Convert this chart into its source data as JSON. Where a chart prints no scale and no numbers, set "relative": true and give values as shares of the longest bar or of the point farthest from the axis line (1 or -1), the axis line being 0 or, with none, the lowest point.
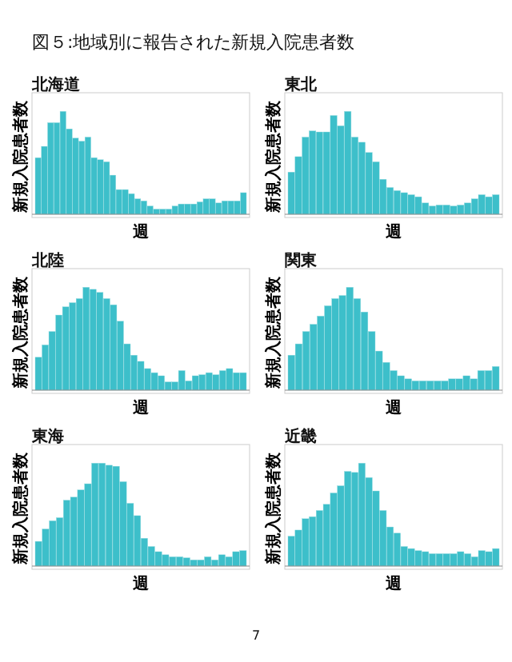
{
  "chart_data": [
    {
      "type": "other",
      "title": "図５:地域別に報告された新規入院患者数",
      "annotations": [
        "7"
      ]
    },
    {
      "type": "bar",
      "title": "北海道",
      "xlabel": "週",
      "ylabel": "新規入院患者数",
      "relative": true,
      "color": "#3dbfca",
      "categories": [
        null,
        null,
        null,
        null,
        null,
        null,
        null,
        null,
        null,
        null,
        null,
        null,
        null,
        null,
        null,
        null,
        null,
        null,
        null,
        null,
        null,
        null,
        null,
        null,
        null,
        null,
        null,
        null,
        null,
        null,
        null,
        null,
        null,
        null
      ],
      "values": [
        0.55,
        0.66,
        0.89,
        0.89,
        1,
        0.83,
        0.74,
        0.71,
        0.75,
        0.55,
        0.53,
        0.51,
        0.38,
        0.24,
        0.24,
        0.2,
        0.15,
        0.13,
        0.08,
        0.05,
        0.05,
        0.05,
        0.08,
        0.1,
        0.1,
        0.1,
        0.12,
        0.15,
        0.15,
        0.11,
        0.13,
        0.13,
        0.13,
        0.21
      ]
    },
    {
      "type": "bar",
      "title": "東北",
      "xlabel": "週",
      "ylabel": "新規入院患者数",
      "relative": true,
      "color": "#3dbfca",
      "categories": [
        null,
        null,
        null,
        null,
        null,
        null,
        null,
        null,
        null,
        null,
        null,
        null,
        null,
        null,
        null,
        null,
        null,
        null,
        null,
        null,
        null,
        null,
        null,
        null,
        null,
        null,
        null,
        null,
        null,
        null
      ],
      "values": [
        0.41,
        0.56,
        0.75,
        0.81,
        0.8,
        0.8,
        0.96,
        0.86,
        1,
        0.75,
        0.7,
        0.6,
        0.51,
        0.34,
        0.26,
        0.23,
        0.21,
        0.19,
        0.17,
        0.11,
        0.08,
        0.09,
        0.09,
        0.08,
        0.09,
        0.11,
        0.15,
        0.19,
        0.17,
        0.19
      ]
    },
    {
      "type": "bar",
      "title": "北陸",
      "xlabel": "週",
      "ylabel": "新規入院患者数",
      "relative": true,
      "color": "#3dbfca",
      "categories": [
        null,
        null,
        null,
        null,
        null,
        null,
        null,
        null,
        null,
        null,
        null,
        null,
        null,
        null,
        null,
        null,
        null,
        null,
        null,
        null,
        null,
        null,
        null,
        null,
        null,
        null,
        null,
        null,
        null,
        null,
        null
      ],
      "values": [
        0.32,
        0.44,
        0.57,
        0.73,
        0.81,
        0.85,
        0.89,
        1,
        0.98,
        0.95,
        0.89,
        0.83,
        0.67,
        0.45,
        0.34,
        0.28,
        0.21,
        0.17,
        0.14,
        0.08,
        0.08,
        0.19,
        0.09,
        0.14,
        0.15,
        0.17,
        0.15,
        0.19,
        0.21,
        0.17,
        0.17
      ]
    },
    {
      "type": "bar",
      "title": "関東",
      "xlabel": "週",
      "ylabel": "新規入院患者数",
      "relative": true,
      "color": "#3dbfca",
      "categories": [
        null,
        null,
        null,
        null,
        null,
        null,
        null,
        null,
        null,
        null,
        null,
        null,
        null,
        null,
        null,
        null,
        null,
        null,
        null,
        null,
        null,
        null,
        null,
        null,
        null,
        null,
        null,
        null,
        null
      ],
      "values": [
        0.34,
        0.45,
        0.57,
        0.64,
        0.72,
        0.82,
        0.89,
        0.92,
        1,
        0.89,
        0.76,
        0.57,
        0.38,
        0.27,
        0.19,
        0.14,
        0.11,
        0.09,
        0.09,
        0.09,
        0.09,
        0.09,
        0.11,
        0.11,
        0.14,
        0.11,
        0.19,
        0.19,
        0.23
      ]
    },
    {
      "type": "bar",
      "title": "東海",
      "xlabel": "週",
      "ylabel": "新規入院患者数",
      "relative": true,
      "color": "#3dbfca",
      "categories": [
        null,
        null,
        null,
        null,
        null,
        null,
        null,
        null,
        null,
        null,
        null,
        null,
        null,
        null,
        null,
        null,
        null,
        null,
        null,
        null,
        null,
        null,
        null,
        null,
        null,
        null,
        null,
        null,
        null,
        null
      ],
      "values": [
        0.24,
        0.36,
        0.44,
        0.47,
        0.64,
        0.67,
        0.74,
        0.8,
        1,
        1,
        0.98,
        0.97,
        0.82,
        0.61,
        0.49,
        0.27,
        0.19,
        0.14,
        0.11,
        0.09,
        0.09,
        0.08,
        0.06,
        0.06,
        0.09,
        0.06,
        0.11,
        0.09,
        0.14,
        0.15
      ]
    },
    {
      "type": "bar",
      "title": "近畿",
      "xlabel": "週",
      "ylabel": "新規入院患者数",
      "relative": true,
      "color": "#3dbfca",
      "categories": [
        null,
        null,
        null,
        null,
        null,
        null,
        null,
        null,
        null,
        null,
        null,
        null,
        null,
        null,
        null,
        null,
        null,
        null,
        null,
        null,
        null,
        null,
        null,
        null,
        null,
        null,
        null,
        null,
        null,
        null
      ],
      "values": [
        0.29,
        0.35,
        0.46,
        0.48,
        0.54,
        0.6,
        0.71,
        0.78,
        0.92,
        0.91,
        1,
        0.86,
        0.73,
        0.54,
        0.38,
        0.32,
        0.19,
        0.17,
        0.15,
        0.14,
        0.12,
        0.12,
        0.12,
        0.12,
        0.14,
        0.12,
        0.09,
        0.15,
        0.14,
        0.17
      ]
    }
  ]
}
